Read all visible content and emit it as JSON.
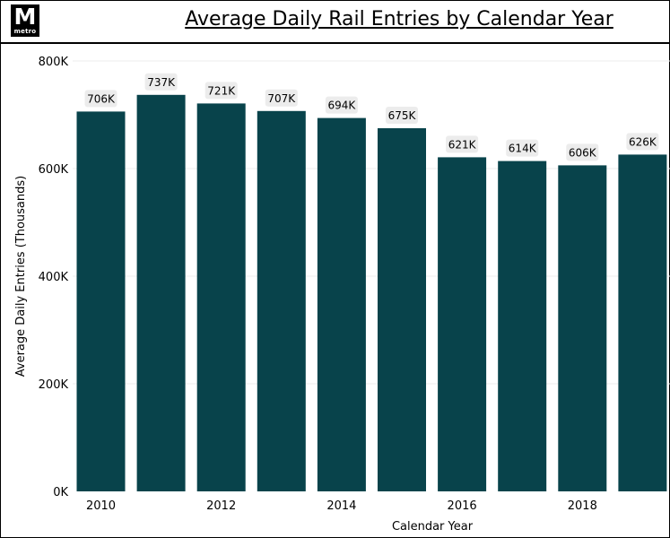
{
  "logo": {
    "letter": "M",
    "sub": "metro"
  },
  "title": "Average Daily Rail Entries by Calendar Year",
  "colors": {
    "bar": "#08434b",
    "label_bg": "#ececec",
    "grid": "#ececec",
    "text": "#000000"
  },
  "chart_data": {
    "type": "bar",
    "title": "Average Daily Rail Entries by Calendar Year",
    "xlabel": "Calendar Year",
    "ylabel": "Average Daily Entries (Thousands)",
    "categories": [
      2010,
      2011,
      2012,
      2013,
      2014,
      2015,
      2016,
      2017,
      2018,
      2019
    ],
    "values": [
      706,
      737,
      721,
      707,
      694,
      675,
      621,
      614,
      606,
      626
    ],
    "data_labels": [
      "706K",
      "737K",
      "721K",
      "707K",
      "694K",
      "675K",
      "621K",
      "614K",
      "606K",
      "626K"
    ],
    "x_tick_labels": [
      "2010",
      "2012",
      "2014",
      "2016",
      "2018"
    ],
    "y_ticks": [
      0,
      200,
      400,
      600,
      800
    ],
    "y_tick_labels": [
      "0K",
      "200K",
      "400K",
      "600K",
      "800K"
    ],
    "ylim": [
      0,
      800
    ],
    "grid": true
  }
}
